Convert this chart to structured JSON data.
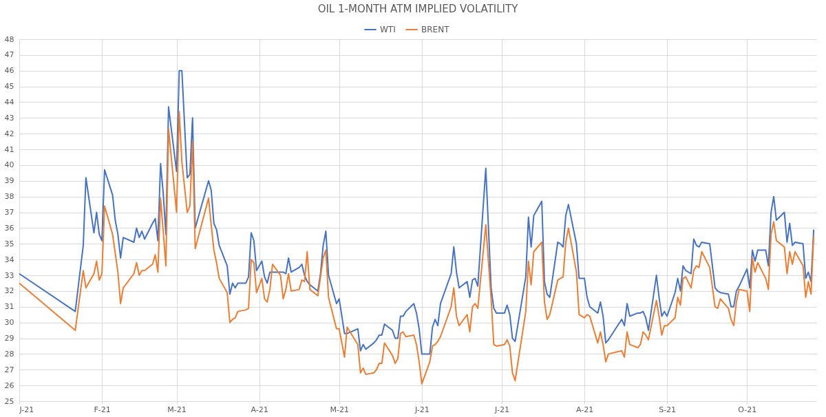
{
  "chart_data": {
    "type": "line",
    "title": "OIL 1-MONTH ATM IMPLIED VOLATILITY",
    "x": [
      "2021-01-01",
      "2021-01-22",
      "2021-01-25",
      "2021-01-26",
      "2021-01-29",
      "2021-01-30",
      "2021-01-31",
      "2021-02-01",
      "2021-02-02",
      "2021-02-05",
      "2021-02-06",
      "2021-02-07",
      "2021-02-08",
      "2021-02-09",
      "2021-02-13",
      "2021-02-14",
      "2021-02-15",
      "2021-02-16",
      "2021-02-17",
      "2021-02-20",
      "2021-02-21",
      "2021-02-22",
      "2021-02-23",
      "2021-02-24",
      "2021-02-25",
      "2021-02-26",
      "2021-03-01",
      "2021-03-02",
      "2021-03-03",
      "2021-03-05",
      "2021-03-06",
      "2021-03-07",
      "2021-03-08",
      "2021-03-13",
      "2021-03-14",
      "2021-03-15",
      "2021-03-16",
      "2021-03-17",
      "2021-03-20",
      "2021-03-21",
      "2021-03-22",
      "2021-03-23",
      "2021-03-24",
      "2021-03-27",
      "2021-03-28",
      "2021-03-29",
      "2021-03-30",
      "2021-03-31",
      "2021-04-02",
      "2021-04-03",
      "2021-04-04",
      "2021-04-05",
      "2021-04-06",
      "2021-04-09",
      "2021-04-10",
      "2021-04-11",
      "2021-04-12",
      "2021-04-13",
      "2021-04-16",
      "2021-04-17",
      "2021-04-18",
      "2021-04-19",
      "2021-04-20",
      "2021-04-23",
      "2021-04-24",
      "2021-04-25",
      "2021-04-26",
      "2021-04-27",
      "2021-04-30",
      "2021-05-01",
      "2021-05-03",
      "2021-05-04",
      "2021-05-08",
      "2021-05-09",
      "2021-05-10",
      "2021-05-11",
      "2021-05-14",
      "2021-05-15",
      "2021-05-16",
      "2021-05-17",
      "2021-05-18",
      "2021-05-21",
      "2021-05-22",
      "2021-05-23",
      "2021-05-24",
      "2021-05-25",
      "2021-05-26",
      "2021-05-29",
      "2021-05-30",
      "2021-05-31",
      "2021-06-01",
      "2021-06-04",
      "2021-06-05",
      "2021-06-06",
      "2021-06-07",
      "2021-06-08",
      "2021-06-12",
      "2021-06-13",
      "2021-06-14",
      "2021-06-15",
      "2021-06-18",
      "2021-06-19",
      "2021-06-20",
      "2021-06-21",
      "2021-06-22",
      "2021-06-25",
      "2021-06-27",
      "2021-06-28",
      "2021-06-29",
      "2021-07-02",
      "2021-07-03",
      "2021-07-04",
      "2021-07-05",
      "2021-07-06",
      "2021-07-10",
      "2021-07-11",
      "2021-07-12",
      "2021-07-13",
      "2021-07-16",
      "2021-07-17",
      "2021-07-18",
      "2021-07-19",
      "2021-07-22",
      "2021-07-23",
      "2021-07-24",
      "2021-07-25",
      "2021-07-26",
      "2021-07-29",
      "2021-07-30",
      "2021-08-01",
      "2021-08-02",
      "2021-08-03",
      "2021-08-06",
      "2021-08-07",
      "2021-08-08",
      "2021-08-09",
      "2021-08-10",
      "2021-08-15",
      "2021-08-16",
      "2021-08-17",
      "2021-08-18",
      "2021-08-21",
      "2021-08-22",
      "2021-08-23",
      "2021-08-24",
      "2021-08-25",
      "2021-08-28",
      "2021-08-29",
      "2021-08-30",
      "2021-08-31",
      "2021-09-01",
      "2021-09-04",
      "2021-09-05",
      "2021-09-06",
      "2021-09-07",
      "2021-09-08",
      "2021-09-10",
      "2021-09-11",
      "2021-09-12",
      "2021-09-13",
      "2021-09-14",
      "2021-09-17",
      "2021-09-19",
      "2021-09-20",
      "2021-09-21",
      "2021-09-24",
      "2021-09-25",
      "2021-09-26",
      "2021-09-27",
      "2021-09-28",
      "2021-10-01",
      "2021-10-02",
      "2021-10-03",
      "2021-10-04",
      "2021-10-05",
      "2021-10-08",
      "2021-10-09",
      "2021-10-10",
      "2021-10-11",
      "2021-10-12",
      "2021-10-15",
      "2021-10-16",
      "2021-10-17",
      "2021-10-18",
      "2021-10-19",
      "2021-10-22",
      "2021-10-23",
      "2021-10-24",
      "2021-10-25",
      "2021-10-26"
    ],
    "series": [
      {
        "name": "WTI",
        "color": "#4472c4",
        "values": [
          33.1,
          30.7,
          34.9,
          39.2,
          35.7,
          37.0,
          35.6,
          35.2,
          39.7,
          38.1,
          36.5,
          35.6,
          34.1,
          35.4,
          35.1,
          36.0,
          35.4,
          35.8,
          35.3,
          36.3,
          36.6,
          35.2,
          40.1,
          38.2,
          35.6,
          43.7,
          39.6,
          46.0,
          46.0,
          39.2,
          39.4,
          43.0,
          36.0,
          39.0,
          38.4,
          36.3,
          35.9,
          34.9,
          33.6,
          31.8,
          32.5,
          32.2,
          32.5,
          32.5,
          32.9,
          35.7,
          35.2,
          33.3,
          33.9,
          32.9,
          32.5,
          33.2,
          33.2,
          33.2,
          33.2,
          33.1,
          34.1,
          33.2,
          33.5,
          33.7,
          33.0,
          32.6,
          32.4,
          32.0,
          33.1,
          34.9,
          35.8,
          33.0,
          31.2,
          31.5,
          29.3,
          29.3,
          29.6,
          28.2,
          28.6,
          28.3,
          28.7,
          28.9,
          29.2,
          29.2,
          29.9,
          29.5,
          29.0,
          29.0,
          30.4,
          30.4,
          30.7,
          31.2,
          30.6,
          29.6,
          28.0,
          28.0,
          29.7,
          30.2,
          29.8,
          31.2,
          33.1,
          34.8,
          33.2,
          32.2,
          32.6,
          31.6,
          32.7,
          32.8,
          32.3,
          39.8,
          32.2,
          30.9,
          30.6,
          30.6,
          31.1,
          30.5,
          29.0,
          28.8,
          32.9,
          36.7,
          34.8,
          36.8,
          37.7,
          32.6,
          31.8,
          31.6,
          35.1,
          35.0,
          34.8,
          36.8,
          37.5,
          35.0,
          32.8,
          32.8,
          31.6,
          31.0,
          30.6,
          31.3,
          30.4,
          28.7,
          28.9,
          30.2,
          29.8,
          31.2,
          30.4,
          30.6,
          30.6,
          30.7,
          30.3,
          29.5,
          33.0,
          31.6,
          30.4,
          30.7,
          30.4,
          31.9,
          32.8,
          32.0,
          33.6,
          33.3,
          33.1,
          35.3,
          34.9,
          34.8,
          35.1,
          35.0,
          32.2,
          32.0,
          31.9,
          31.8,
          31.0,
          31.0,
          32.0,
          32.3,
          33.4,
          32.2,
          34.6,
          33.9,
          34.6,
          34.6,
          33.6,
          37.0,
          38.0,
          36.5,
          37.0,
          35.1,
          36.3,
          34.9,
          35.1,
          35.0,
          32.8,
          33.2,
          32.6,
          35.9
        ]
      },
      {
        "name": "BRENT",
        "color": "#ed7d31",
        "values": [
          32.5,
          29.5,
          33.3,
          32.2,
          33.1,
          33.9,
          32.7,
          33.1,
          37.4,
          35.6,
          34.4,
          33.2,
          31.2,
          32.2,
          33.1,
          33.8,
          33.0,
          33.3,
          33.3,
          33.7,
          34.3,
          33.2,
          37.9,
          35.8,
          33.6,
          42.3,
          37.0,
          43.4,
          40.2,
          37.0,
          37.4,
          41.5,
          34.7,
          37.9,
          36.2,
          34.6,
          33.8,
          32.8,
          31.9,
          30.0,
          30.2,
          30.3,
          30.7,
          30.8,
          30.9,
          34.0,
          33.8,
          31.9,
          32.8,
          31.5,
          31.3,
          32.1,
          33.7,
          33.0,
          31.5,
          32.1,
          33.1,
          32.0,
          32.1,
          32.7,
          32.6,
          34.5,
          32.1,
          31.7,
          32.9,
          34.1,
          34.6,
          31.6,
          29.6,
          29.6,
          27.8,
          29.7,
          28.6,
          26.8,
          27.1,
          26.7,
          26.8,
          27.0,
          27.4,
          27.4,
          28.7,
          27.9,
          27.4,
          27.7,
          29.3,
          29.4,
          29.1,
          29.2,
          28.6,
          27.5,
          26.1,
          27.5,
          28.5,
          28.6,
          28.8,
          29.1,
          31.0,
          32.2,
          30.4,
          29.8,
          30.5,
          29.4,
          31.0,
          31.2,
          30.9,
          36.2,
          31.5,
          28.6,
          28.5,
          28.6,
          28.9,
          28.5,
          26.8,
          26.3,
          30.7,
          33.9,
          32.4,
          34.5,
          35.1,
          31.3,
          30.2,
          30.5,
          32.7,
          32.8,
          32.9,
          35.1,
          36.0,
          33.2,
          30.5,
          30.3,
          30.5,
          30.4,
          28.7,
          29.4,
          28.6,
          27.5,
          28.0,
          28.2,
          27.8,
          29.4,
          28.6,
          28.4,
          28.6,
          29.4,
          29.2,
          28.9,
          31.4,
          30.4,
          29.2,
          29.8,
          29.8,
          30.3,
          31.6,
          31.1,
          32.8,
          32.9,
          32.2,
          33.3,
          33.6,
          33.5,
          34.5,
          33.5,
          31.0,
          30.9,
          31.5,
          30.9,
          30.2,
          29.8,
          31.3,
          32.1,
          32.0,
          30.7,
          34.1,
          33.2,
          33.8,
          32.8,
          32.1,
          35.6,
          36.4,
          35.2,
          34.8,
          33.1,
          34.5,
          33.7,
          34.5,
          33.6,
          31.6,
          32.6,
          31.8,
          35.5
        ]
      }
    ],
    "xlim": [
      "2021-01-01",
      "2021-10-27"
    ],
    "xticks": [
      {
        "value": "2021-01-01",
        "label": "J-21"
      },
      {
        "value": "2021-02-01",
        "label": "F-21"
      },
      {
        "value": "2021-03-01",
        "label": "M-21"
      },
      {
        "value": "2021-04-01",
        "label": "A-21"
      },
      {
        "value": "2021-05-01",
        "label": "M-21"
      },
      {
        "value": "2021-06-01",
        "label": "J-21"
      },
      {
        "value": "2021-07-01",
        "label": "J-21"
      },
      {
        "value": "2021-08-01",
        "label": "A-21"
      },
      {
        "value": "2021-09-01",
        "label": "S-21"
      },
      {
        "value": "2021-10-01",
        "label": "O-21"
      }
    ],
    "ylim": [
      25,
      48
    ],
    "yticks": [
      25,
      26,
      27,
      28,
      29,
      30,
      31,
      32,
      33,
      34,
      35,
      36,
      37,
      38,
      39,
      40,
      41,
      42,
      43,
      44,
      45,
      46,
      47,
      48
    ],
    "grid": true,
    "legend": "top",
    "line_style": "solid"
  }
}
